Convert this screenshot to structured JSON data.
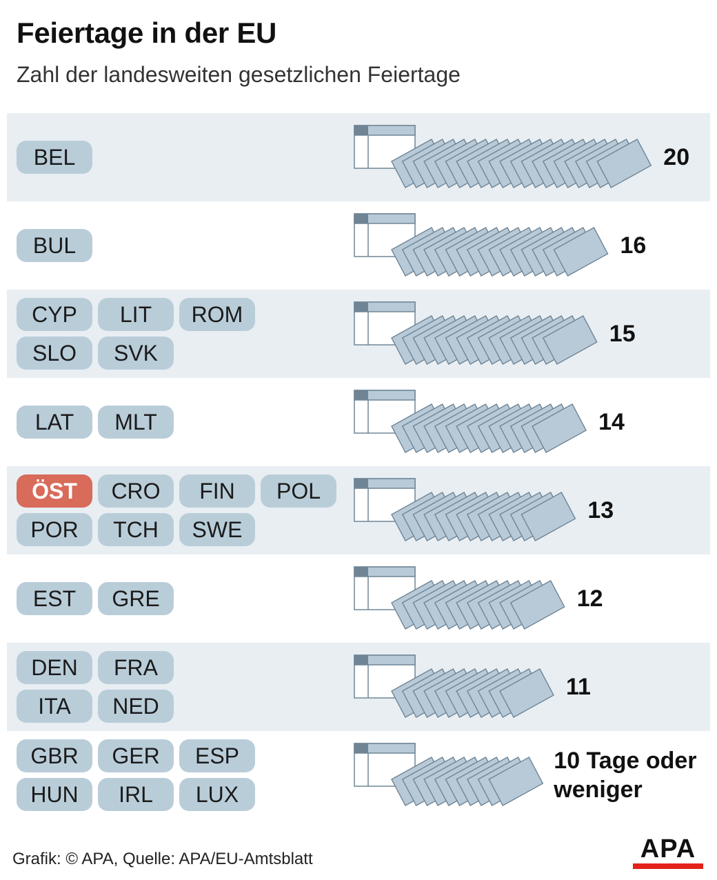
{
  "title": "Feiertage in der EU",
  "subtitle": "Zahl der landesweiten gesetzlichen Feiertage",
  "footer": "Grafik: © APA, Quelle: APA/EU-Amtsblatt",
  "logo": "APA",
  "colors": {
    "shaded_row": "#e8eef2",
    "chip": "#b9cdd9",
    "chip_highlight": "#d86b5a",
    "sheet": "#b8cad8",
    "sheet_stroke": "#6f8596",
    "logo_bar": "#e2231a"
  },
  "chart_data": {
    "type": "bar",
    "title": "Feiertage in der EU",
    "subtitle": "Zahl der landesweiten gesetzlichen Feiertage",
    "rows": [
      {
        "value_label": "20",
        "value": 20,
        "countries": [
          "BEL"
        ]
      },
      {
        "value_label": "16",
        "value": 16,
        "countries": [
          "BUL"
        ]
      },
      {
        "value_label": "15",
        "value": 15,
        "countries": [
          "CYP",
          "LIT",
          "ROM",
          "SLO",
          "SVK"
        ]
      },
      {
        "value_label": "14",
        "value": 14,
        "countries": [
          "LAT",
          "MLT"
        ]
      },
      {
        "value_label": "13",
        "value": 13,
        "countries": [
          "ÖST",
          "CRO",
          "FIN",
          "POL",
          "POR",
          "TCH",
          "SWE"
        ],
        "highlight": "ÖST"
      },
      {
        "value_label": "12",
        "value": 12,
        "countries": [
          "EST",
          "GRE"
        ]
      },
      {
        "value_label": "11",
        "value": 11,
        "countries": [
          "DEN",
          "FRA",
          "ITA",
          "NED"
        ]
      },
      {
        "value_label": "10 Tage oder weniger",
        "value_lines": [
          "10 Tage oder",
          "weniger"
        ],
        "value": 10,
        "countries": [
          "GBR",
          "GER",
          "ESP",
          "HUN",
          "IRL",
          "LUX"
        ]
      }
    ]
  }
}
